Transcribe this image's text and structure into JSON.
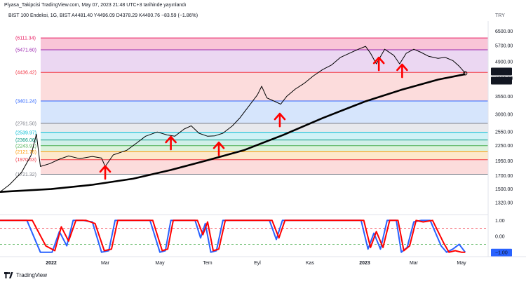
{
  "header": {
    "publish_line": "Piyasa_Takipcisi TradingView.com, May 07, 2023 21:48 UTC+3 tarihinde yayınlandı",
    "symbol_line": "BIST 100 Endeksi, 1G, BIST  A4481.40  Y4496.09  D4378.29  K4400.76  −83.59 (−1.86%)",
    "currency": "TRY"
  },
  "footer": {
    "brand": "TradingView"
  },
  "chart_data": [
    {
      "type": "line",
      "title": "BIST 100 Endeksi, 1G, BIST",
      "scale": "log",
      "y_ticks": [
        "6500.00",
        "5700.00",
        "4900.00",
        "4200.00",
        "3550.00",
        "3000.00",
        "2550.00",
        "2250.00",
        "1950.00",
        "1700.00",
        "1500.00",
        "1320.00"
      ],
      "x_ticks": [
        "2022",
        "Mar",
        "May",
        "Tem",
        "Eyl",
        "Kas",
        "2023",
        "Mar",
        "May"
      ],
      "price_labels": [
        "4400.76",
        "4360.89"
      ],
      "fib_levels": [
        {
          "label": "(6111.34)",
          "value": 6111.34,
          "color": "#e91e63"
        },
        {
          "label": "(5471.60)",
          "value": 5471.6,
          "color": "#9c27b0"
        },
        {
          "label": "(4436.42)",
          "value": 4436.42,
          "color": "#f23645"
        },
        {
          "label": "(3401.24)",
          "value": 3401.24,
          "color": "#2962ff"
        },
        {
          "label": "(2761.50)",
          "value": 2761.5,
          "color": "#787b86"
        },
        {
          "label": "(2539.97)",
          "value": 2539.97,
          "color": "#00bcd4"
        },
        {
          "label": "(2366.06)",
          "value": 2366.06,
          "color": "#089981"
        },
        {
          "label": "(2243.91)",
          "value": 2243.91,
          "color": "#4caf50"
        },
        {
          "label": "(2121.76)",
          "value": 2121.76,
          "color": "#ff9800"
        },
        {
          "label": "(1970.63)",
          "value": 1970.63,
          "color": "#f23645"
        },
        {
          "label": "(1721.32)",
          "value": 1721.32,
          "color": "#787b86"
        }
      ],
      "series": [
        {
          "name": "BIST 100",
          "color": "#000000",
          "points": [
            [
              "2021-11-24",
              1460
            ],
            [
              "2021-12-01",
              1560
            ],
            [
              "2021-12-10",
              1750
            ],
            [
              "2021-12-17",
              2050
            ],
            [
              "2021-12-21",
              2500
            ],
            [
              "2021-12-24",
              1850
            ],
            [
              "2021-12-31",
              1900
            ],
            [
              "2022-01-10",
              1980
            ],
            [
              "2022-01-20",
              2040
            ],
            [
              "2022-02-01",
              1990
            ],
            [
              "2022-02-15",
              2030
            ],
            [
              "2022-02-25",
              2000
            ],
            [
              "2022-03-01",
              1850
            ],
            [
              "2022-03-10",
              2060
            ],
            [
              "2022-03-25",
              2150
            ],
            [
              "2022-04-05",
              2300
            ],
            [
              "2022-04-15",
              2450
            ],
            [
              "2022-04-28",
              2550
            ],
            [
              "2022-05-10",
              2480
            ],
            [
              "2022-05-20",
              2450
            ],
            [
              "2022-06-01",
              2620
            ],
            [
              "2022-06-10",
              2700
            ],
            [
              "2022-06-20",
              2520
            ],
            [
              "2022-07-01",
              2450
            ],
            [
              "2022-07-10",
              2460
            ],
            [
              "2022-07-20",
              2520
            ],
            [
              "2022-08-01",
              2700
            ],
            [
              "2022-08-10",
              2900
            ],
            [
              "2022-08-20",
              3200
            ],
            [
              "2022-09-01",
              3600
            ],
            [
              "2022-09-06",
              3900
            ],
            [
              "2022-09-12",
              3500
            ],
            [
              "2022-09-20",
              3400
            ],
            [
              "2022-09-28",
              3300
            ],
            [
              "2022-10-05",
              3550
            ],
            [
              "2022-10-15",
              3800
            ],
            [
              "2022-10-25",
              4000
            ],
            [
              "2022-11-05",
              4300
            ],
            [
              "2022-11-15",
              4550
            ],
            [
              "2022-11-25",
              4750
            ],
            [
              "2022-12-05",
              5100
            ],
            [
              "2022-12-15",
              5300
            ],
            [
              "2022-12-25",
              5500
            ],
            [
              "2023-01-02",
              5650
            ],
            [
              "2023-01-08",
              5300
            ],
            [
              "2023-01-15",
              4800
            ],
            [
              "2023-01-25",
              5500
            ],
            [
              "2023-02-05",
              5200
            ],
            [
              "2023-02-12",
              4800
            ],
            [
              "2023-02-20",
              5300
            ],
            [
              "2023-03-01",
              5500
            ],
            [
              "2023-03-10",
              5350
            ],
            [
              "2023-03-20",
              5150
            ],
            [
              "2023-04-01",
              5050
            ],
            [
              "2023-04-10",
              5100
            ],
            [
              "2023-04-20",
              4950
            ],
            [
              "2023-04-28",
              4700
            ],
            [
              "2023-05-04",
              4450
            ],
            [
              "2023-05-05",
              4400.76
            ]
          ]
        },
        {
          "name": "MA",
          "color": "#000000",
          "points": [
            [
              "2021-11-24",
              1460
            ],
            [
              "2022-01-01",
              1500
            ],
            [
              "2022-02-15",
              1560
            ],
            [
              "2022-04-01",
              1650
            ],
            [
              "2022-05-15",
              1790
            ],
            [
              "2022-07-01",
              1960
            ],
            [
              "2022-08-15",
              2150
            ],
            [
              "2022-10-01",
              2480
            ],
            [
              "2022-11-15",
              2900
            ],
            [
              "2023-01-01",
              3380
            ],
            [
              "2023-02-15",
              3780
            ],
            [
              "2023-04-01",
              4150
            ],
            [
              "2023-05-05",
              4360.89
            ]
          ]
        }
      ],
      "annotations": [
        {
          "type": "up-arrow",
          "date": "2022-03-01",
          "price": 1750,
          "color": "#ff0000"
        },
        {
          "type": "up-arrow",
          "date": "2022-05-15",
          "price": 2300,
          "color": "#ff0000"
        },
        {
          "type": "up-arrow",
          "date": "2022-07-15",
          "price": 2180,
          "color": "#ff0000"
        },
        {
          "type": "up-arrow",
          "date": "2022-09-27",
          "price": 2850,
          "color": "#ff0000"
        },
        {
          "type": "up-arrow",
          "date": "2023-01-18",
          "price": 4800,
          "color": "#ff0000"
        },
        {
          "type": "up-arrow",
          "date": "2023-02-15",
          "price": 4500,
          "color": "#ff0000"
        }
      ]
    },
    {
      "type": "line",
      "title": "",
      "ylim": [
        -1.1,
        1.1
      ],
      "y_ticks": [
        "1.00",
        "0.00"
      ],
      "last_value_label": "−1.00",
      "levels": [
        {
          "value": 0.5,
          "color": "#f23645"
        },
        {
          "value": -0.5,
          "color": "#4caf50"
        }
      ],
      "series": [
        {
          "name": "",
          "color": "#2962ff",
          "points": [
            [
              "2021-11-24",
              1
            ],
            [
              "2021-12-14",
              1
            ],
            [
              "2021-12-24",
              -1
            ],
            [
              "2022-01-02",
              -1
            ],
            [
              "2022-01-10",
              0.3
            ],
            [
              "2022-01-18",
              -0.6
            ],
            [
              "2022-01-25",
              1
            ],
            [
              "2022-02-05",
              1
            ],
            [
              "2022-02-15",
              0.9
            ],
            [
              "2022-02-25",
              -1
            ],
            [
              "2022-03-05",
              -0.9
            ],
            [
              "2022-03-12",
              1
            ],
            [
              "2022-04-20",
              1
            ],
            [
              "2022-05-01",
              -1
            ],
            [
              "2022-05-08",
              -0.9
            ],
            [
              "2022-05-15",
              1
            ],
            [
              "2022-06-15",
              1
            ],
            [
              "2022-06-22",
              -0.1
            ],
            [
              "2022-06-28",
              0.8
            ],
            [
              "2022-07-05",
              -1
            ],
            [
              "2022-07-12",
              -0.9
            ],
            [
              "2022-07-20",
              1
            ],
            [
              "2022-09-15",
              1
            ],
            [
              "2022-09-23",
              -0.2
            ],
            [
              "2022-09-30",
              1
            ],
            [
              "2022-12-28",
              1
            ],
            [
              "2023-01-05",
              -0.8
            ],
            [
              "2023-01-12",
              0.2
            ],
            [
              "2023-01-20",
              -0.8
            ],
            [
              "2023-01-28",
              1
            ],
            [
              "2023-02-08",
              1
            ],
            [
              "2023-02-14",
              -1
            ],
            [
              "2023-02-21",
              -0.7
            ],
            [
              "2023-03-01",
              0.9
            ],
            [
              "2023-03-10",
              1
            ],
            [
              "2023-03-22",
              1
            ],
            [
              "2023-04-05",
              -0.6
            ],
            [
              "2023-04-12",
              -1
            ],
            [
              "2023-04-20",
              -0.8
            ],
            [
              "2023-04-28",
              -0.5
            ],
            [
              "2023-05-05",
              -1
            ]
          ]
        },
        {
          "name": "",
          "color": "#ff0000",
          "points": [
            [
              "2021-11-24",
              1
            ],
            [
              "2021-12-18",
              1
            ],
            [
              "2021-12-28",
              -0.6
            ],
            [
              "2022-01-05",
              -0.9
            ],
            [
              "2022-01-12",
              0.6
            ],
            [
              "2022-01-20",
              -0.3
            ],
            [
              "2022-01-28",
              1
            ],
            [
              "2022-02-08",
              1
            ],
            [
              "2022-02-18",
              0.8
            ],
            [
              "2022-02-28",
              -0.9
            ],
            [
              "2022-03-08",
              -0.8
            ],
            [
              "2022-03-15",
              1
            ],
            [
              "2022-04-23",
              1
            ],
            [
              "2022-05-04",
              -0.9
            ],
            [
              "2022-05-11",
              -0.8
            ],
            [
              "2022-05-18",
              1
            ],
            [
              "2022-06-18",
              1
            ],
            [
              "2022-06-25",
              0.1
            ],
            [
              "2022-07-01",
              0.9
            ],
            [
              "2022-07-08",
              -0.9
            ],
            [
              "2022-07-15",
              -0.8
            ],
            [
              "2022-07-23",
              1
            ],
            [
              "2022-09-18",
              1
            ],
            [
              "2022-09-26",
              -0.1
            ],
            [
              "2022-10-03",
              1
            ],
            [
              "2022-12-31",
              1
            ],
            [
              "2023-01-08",
              -0.7
            ],
            [
              "2023-01-15",
              0.3
            ],
            [
              "2023-01-23",
              -0.7
            ],
            [
              "2023-01-31",
              1
            ],
            [
              "2023-02-10",
              1
            ],
            [
              "2023-02-17",
              -0.9
            ],
            [
              "2023-02-24",
              -0.6
            ],
            [
              "2023-03-04",
              1
            ],
            [
              "2023-03-13",
              0.9
            ],
            [
              "2023-03-25",
              1
            ],
            [
              "2023-04-08",
              -0.4
            ],
            [
              "2023-04-15",
              -1
            ],
            [
              "2023-04-23",
              -0.9
            ],
            [
              "2023-05-01",
              -1
            ],
            [
              "2023-05-05",
              -1
            ]
          ]
        }
      ]
    }
  ]
}
